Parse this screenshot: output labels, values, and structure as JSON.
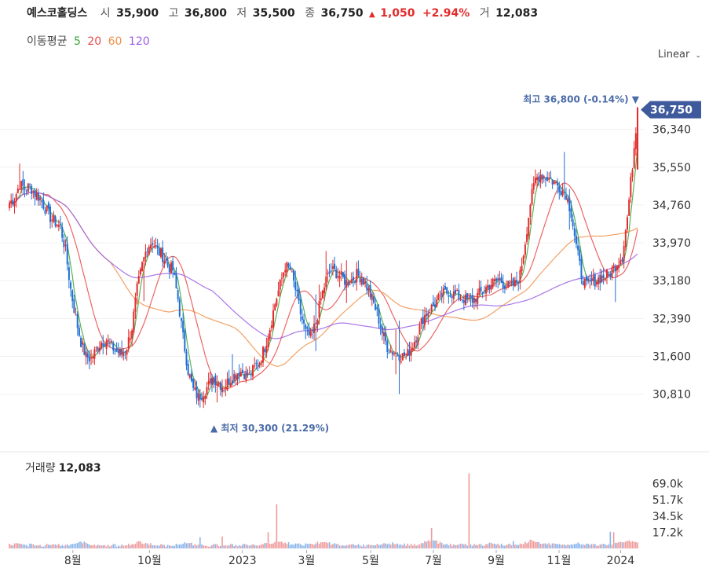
{
  "header": {
    "name": "예스코홀딩스",
    "open_label": "시",
    "open": "35,900",
    "high_label": "고",
    "high": "36,800",
    "low_label": "저",
    "low": "35,500",
    "close_label": "종",
    "close": "36,750",
    "change_arrow": "▲",
    "change": "1,050",
    "change_pct": "+2.94%",
    "volume_label": "거",
    "volume": "12,083"
  },
  "ma_legend": {
    "label": "이동평균",
    "items": [
      {
        "period": "5",
        "color": "#3aa53a"
      },
      {
        "period": "20",
        "color": "#e84a4a"
      },
      {
        "period": "60",
        "color": "#f0904a"
      },
      {
        "period": "120",
        "color": "#9b5de5"
      }
    ]
  },
  "scale_button": "Linear",
  "volume_panel": {
    "label": "거래량",
    "value": "12,083"
  },
  "colors": {
    "up": "#e22b2b",
    "down": "#1f6ed4",
    "current_tag": "#3f5a9c",
    "marker_text": "#4a6aa8"
  },
  "chart_data": {
    "type": "candlestick",
    "x_tick_labels": [
      "8월",
      "10월",
      "2023",
      "3월",
      "5월",
      "7월",
      "9월",
      "11월",
      "2024"
    ],
    "y_tick_labels": [
      "36,340",
      "35,550",
      "34,760",
      "33,970",
      "33,180",
      "32,390",
      "31,600",
      "30,810"
    ],
    "y_ticks": [
      36340,
      35550,
      34760,
      33970,
      33180,
      32390,
      31600,
      30810
    ],
    "ylim": [
      30100,
      37400
    ],
    "current_price_label": "36,750",
    "current_price": 36750,
    "max_marker": "최고 36,800 (-0.14%) ▼",
    "max_value": 36800,
    "min_marker": "▲ 최저 30,300 (21.29%)",
    "min_value": 30300,
    "volume_tick_labels": [
      "69.0k",
      "51.7k",
      "34.5k",
      "17.2k"
    ],
    "volume_ticks": [
      69000,
      51700,
      34500,
      17200
    ],
    "volume_max": 82000,
    "trend_closes": [
      34800,
      34900,
      35200,
      35100,
      35150,
      35000,
      34900,
      34700,
      34500,
      34400,
      34300,
      33800,
      33000,
      32400,
      31900,
      31600,
      31550,
      31750,
      31900,
      31950,
      31800,
      31700,
      31650,
      31800,
      32200,
      33000,
      33500,
      33900,
      34000,
      33800,
      33700,
      33500,
      33400,
      32800,
      32000,
      31300,
      30900,
      30750,
      30850,
      31000,
      31150,
      31050,
      30950,
      31100,
      31200,
      31300,
      31250,
      31200,
      31350,
      31500,
      31800,
      32200,
      32700,
      33100,
      33500,
      33400,
      33000,
      32500,
      32100,
      32000,
      32300,
      32800,
      33200,
      33400,
      33350,
      33250,
      33150,
      33200,
      33300,
      33250,
      33050,
      32800,
      32500,
      32100,
      31800,
      31700,
      31650,
      31600,
      31650,
      31850,
      32100,
      32400,
      32550,
      32650,
      32800,
      32900,
      32950,
      32900,
      32850,
      32800,
      32750,
      32800,
      32900,
      33000,
      33100,
      33150,
      33200,
      33100,
      33050,
      33100,
      33300,
      34000,
      34800,
      35300,
      35400,
      35350,
      35300,
      35200,
      35100,
      35000,
      34600,
      33900,
      33300,
      33050,
      33150,
      33200,
      33250,
      33300,
      33400,
      33550,
      33700,
      34500,
      35600,
      36750
    ],
    "volume_profile": [
      3,
      4,
      3,
      2,
      3,
      2,
      2,
      3,
      4,
      3,
      2,
      3,
      4,
      5,
      6,
      4,
      3,
      3,
      2,
      2,
      3,
      2,
      2,
      3,
      4,
      6,
      5,
      4,
      3,
      3,
      2,
      2,
      3,
      4,
      5,
      4,
      3,
      3,
      2,
      2,
      3,
      2,
      2,
      3,
      2,
      2,
      3,
      3,
      2,
      3,
      4,
      5,
      7,
      6,
      5,
      4,
      4,
      3,
      4,
      3,
      4,
      5,
      5,
      4,
      3,
      3,
      2,
      3,
      3,
      2,
      3,
      3,
      4,
      5,
      4,
      5,
      4,
      3,
      3,
      3,
      4,
      6,
      8,
      7,
      5,
      4,
      3,
      3,
      3,
      3,
      3,
      3,
      3,
      3,
      4,
      3,
      3,
      3,
      3,
      3,
      4,
      6,
      8,
      6,
      5,
      4,
      4,
      3,
      3,
      3,
      4,
      5,
      4,
      4,
      3,
      3,
      3,
      3,
      4,
      5,
      6,
      7,
      6,
      5
    ]
  }
}
